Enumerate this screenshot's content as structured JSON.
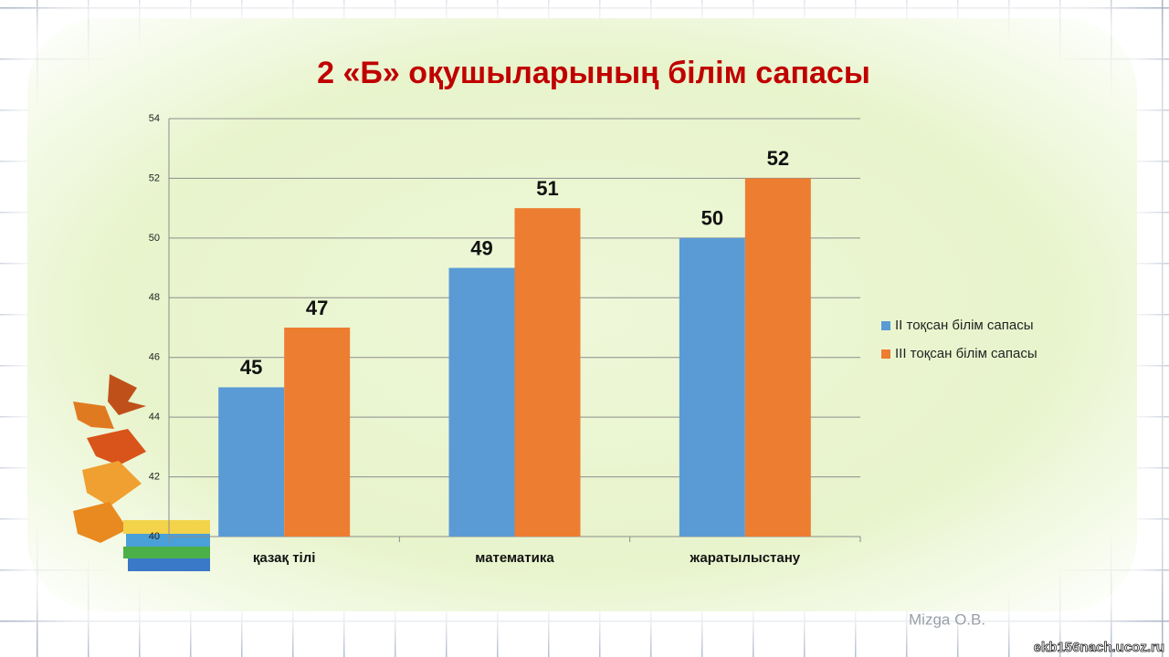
{
  "chart_data": {
    "type": "bar",
    "title": "2 «Б» оқушыларының білім сапасы",
    "categories": [
      "қазақ тілі",
      "математика",
      "жаратылыстану"
    ],
    "series": [
      {
        "name": "II тоқсан білім сапасы",
        "color": "#5b9bd5",
        "values": [
          45,
          49,
          50
        ]
      },
      {
        "name": "III тоқсан білім сапасы",
        "color": "#ed7d31",
        "values": [
          47,
          51,
          52
        ]
      }
    ],
    "ylim": [
      40,
      54
    ],
    "yticks": [
      40,
      42,
      44,
      46,
      48,
      50,
      52,
      54
    ],
    "grid": true,
    "legend": "right",
    "watermarks": [
      "Mizga O.B.",
      "ekb156nach.ucoz.ru"
    ]
  }
}
